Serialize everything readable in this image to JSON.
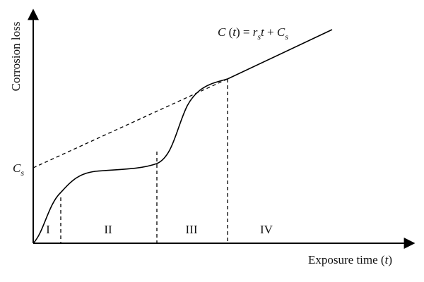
{
  "y_axis_label": "Corrosion loss",
  "x_axis_label": [
    "Exposure time (",
    "t",
    ")"
  ],
  "intercept_label": [
    "C",
    "s"
  ],
  "equation": [
    "C",
    " (",
    "t",
    ") = ",
    "r",
    "s",
    "t",
    " + ",
    "C",
    "s"
  ],
  "regions": [
    "I",
    "II",
    "III",
    "IV"
  ]
}
